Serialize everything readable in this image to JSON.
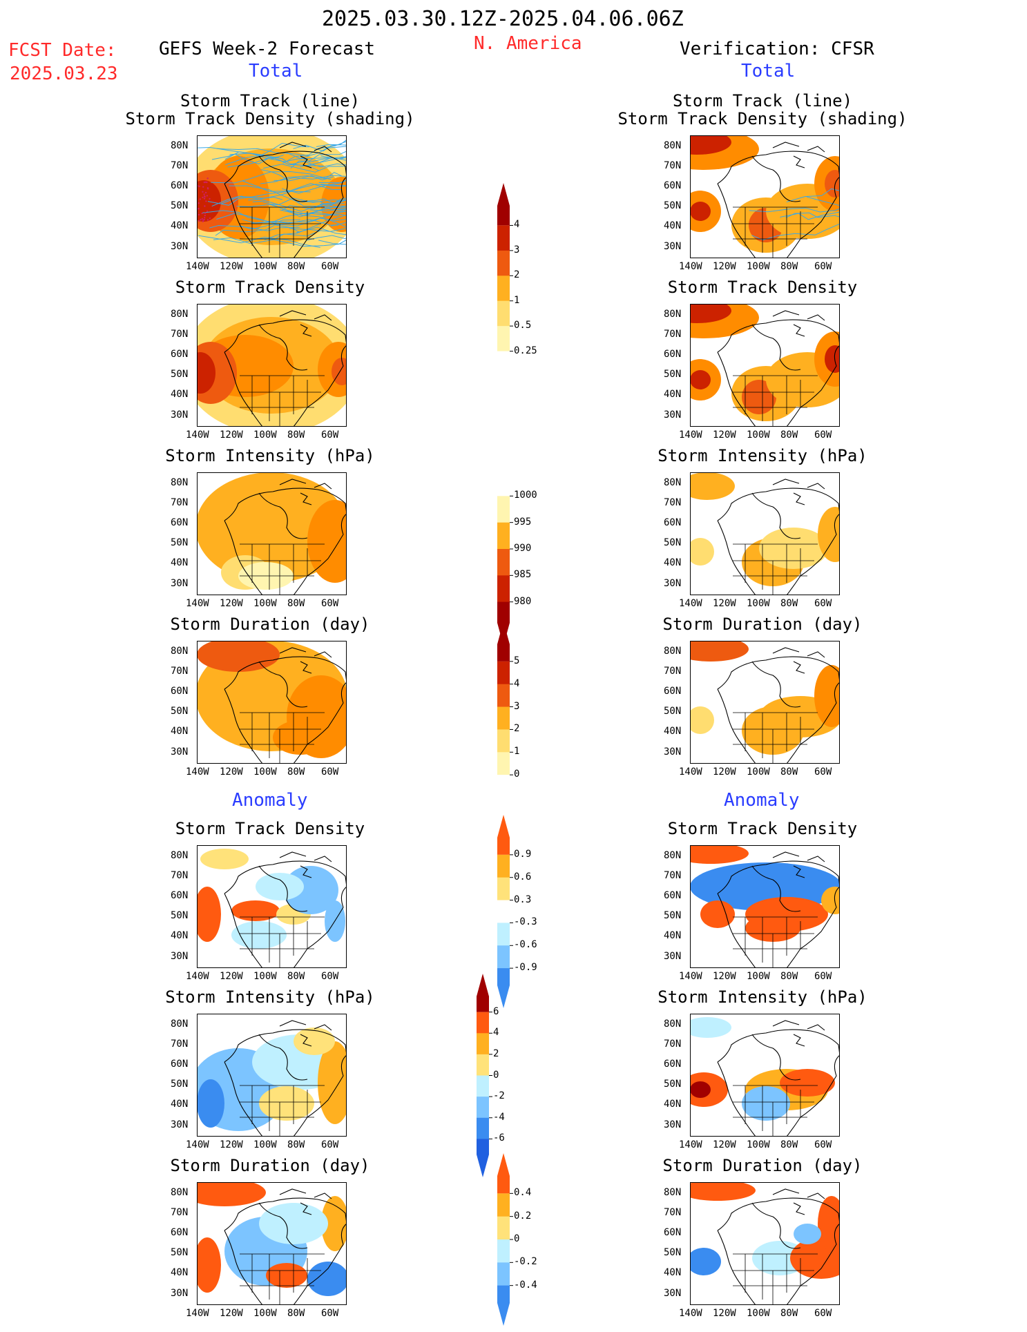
{
  "header": {
    "date_range": "2025.03.30.12Z-2025.04.06.06Z",
    "region": "N. America",
    "fcst_label": "FCST Date:",
    "fcst_date": "2025.03.23",
    "left_title": "GEFS Week-2 Forecast",
    "right_title": "Verification: CFSR",
    "total_label": "Total",
    "anomaly_label": "Anomaly"
  },
  "panel_titles": {
    "track_line": "Storm Track (line)",
    "track_shading": "Storm Track Density (shading)",
    "density": "Storm Track Density",
    "intensity": "Storm Intensity (hPa)",
    "duration": "Storm Duration (day)"
  },
  "axes": {
    "lat_labels": [
      "80N",
      "70N",
      "60N",
      "50N",
      "40N",
      "30N"
    ],
    "lon_labels": [
      "140W",
      "120W",
      "100W",
      "80W",
      "60W"
    ]
  },
  "colorbars": {
    "density_total": [
      "4",
      "3",
      "2",
      "1",
      "0.5",
      "0.25"
    ],
    "intensity_total": [
      "1000",
      "995",
      "990",
      "985",
      "980"
    ],
    "duration_total": [
      "5",
      "4",
      "3",
      "2",
      "1",
      "0"
    ],
    "density_anomaly": [
      "0.9",
      "0.6",
      "0.3",
      "-0.3",
      "-0.6",
      "-0.9"
    ],
    "intensity_anomaly": [
      "6",
      "4",
      "2",
      "0",
      "-2",
      "-4",
      "-6"
    ],
    "duration_anomaly": [
      "0.4",
      "0.2",
      "0",
      "-0.2",
      "-0.4"
    ]
  },
  "colors": {
    "total_scale": [
      "#fff5b0",
      "#ffdd70",
      "#ffb020",
      "#ff8c00",
      "#ee5a10",
      "#cc2200",
      "#a00000"
    ],
    "anomaly_pos": [
      "#ffe27a",
      "#ffb020",
      "#ff5a10"
    ],
    "anomaly_neg": [
      "#bff0ff",
      "#7cc4ff",
      "#3a8cf0"
    ],
    "track_line": "#39a8e6",
    "title_red": "#ff2a2a",
    "label_blue": "#2a3cff"
  }
}
